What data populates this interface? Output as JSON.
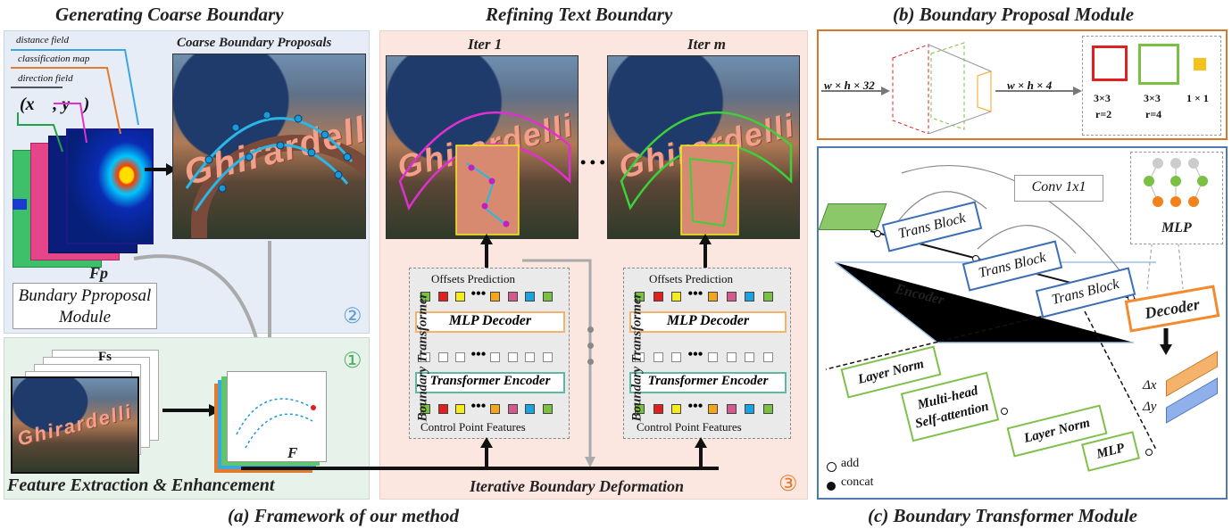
{
  "titles": {
    "generating": "Generating Coarse Boundary",
    "refining": "Refining Text Boundary",
    "bpm": "(b) Boundary Proposal Module",
    "framework": "(a) Framework of our method",
    "btm": "(c) Boundary Transformer Module"
  },
  "panel1": {
    "distance_field": "distance field",
    "classification_map": "classification map",
    "direction_field": "direction field",
    "xy": "(x⃗ , y⃗)",
    "fp": "Fp",
    "coarse_proposals": "Coarse Boundary Proposals",
    "bpm_box": "Bundary Pproposal Module",
    "circle2": "②",
    "photo_word": "Ghirardelli"
  },
  "panel2": {
    "fs": "Fs",
    "f": "F",
    "feature_extraction": "Feature Extraction & Enhancement",
    "circle1": "①"
  },
  "panel3": {
    "iter1": "Iter 1",
    "iterm": "Iter m",
    "ellipsis": "• • •",
    "offsets": "Offsets Prediction",
    "mlp_decoder": "MLP Decoder",
    "transformer_encoder": "Transformer Encoder",
    "control_points": "Control Point Features",
    "boundary_transformer": "Boundary Transformer",
    "iterative": "Iterative Boundary Deformation",
    "circle3": "③",
    "dots": "•••"
  },
  "bpm": {
    "input": "w × h × 32",
    "output": "w × h × 4",
    "k1": "3×3",
    "r1": "r=2",
    "k2": "3×3",
    "r2": "r=4",
    "k3": "1 × 1",
    "mini_dots": "..."
  },
  "btm": {
    "conv": "Conv 1x1",
    "mlp_title": "MLP",
    "trans_block": "Trans Block",
    "encoder": "Encoder",
    "decoder": "Decoder",
    "layer_norm": "Layer Norm",
    "mhsa": "Multi-head Self-attention",
    "mlp": "MLP",
    "dx": "Δx",
    "dy": "Δy",
    "add": "add",
    "concat": "concat"
  },
  "colors": {
    "panel1_bg": "#e6edf7",
    "panel2_bg": "#e7f2ea",
    "panel3_bg": "#fbe6e0",
    "bpm_border": "#d8762a",
    "btm_border": "#4f79b3",
    "square_colors": [
      "#7ac143",
      "#e0201f",
      "#f4ec1c",
      "#c8c8c8",
      "#f3a51c",
      "#d35a8c",
      "#1aa3de"
    ]
  }
}
